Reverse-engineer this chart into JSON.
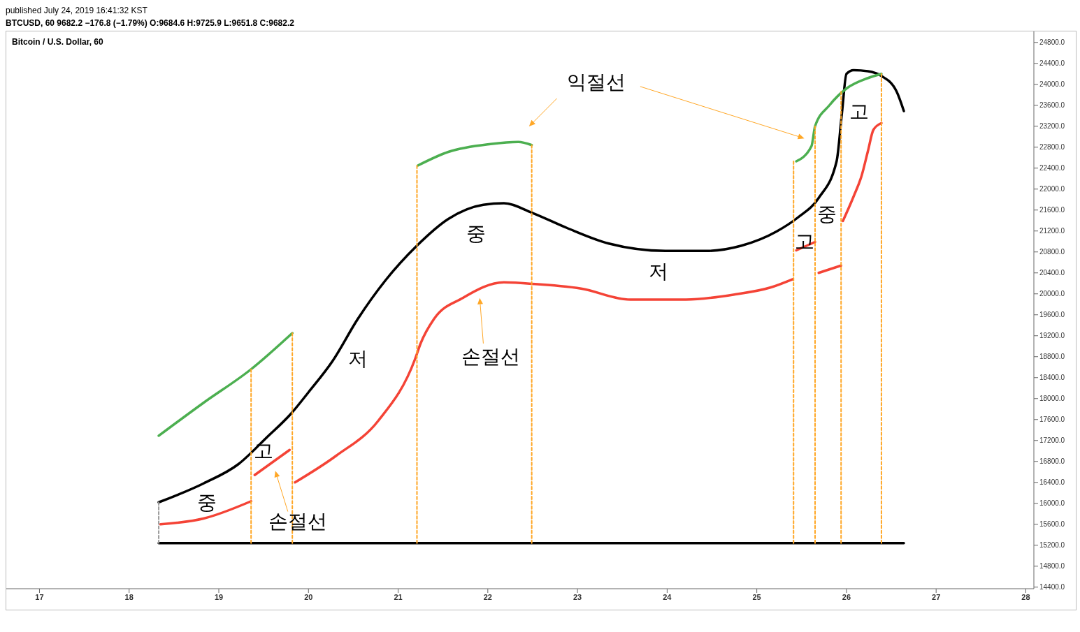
{
  "chart_data": {
    "type": "line",
    "title": "Bitcoin / U.S. Dollar, 60",
    "subtitle": "BTCUSD, 60  9682.2 −176.8 (−1.79%) O:9684.6 H:9725.9 L:9651.8 C:9682.2",
    "annotations": [
      "published July 24, 2019 16:41:32 KST",
      "익절선",
      "손절선",
      "손절선",
      "중",
      "고",
      "저",
      "중",
      "저",
      "고",
      "중",
      "고"
    ],
    "xlim": [
      16.63,
      28.09
    ],
    "xticks": [
      17,
      18,
      19,
      20,
      21,
      22,
      23,
      24,
      25,
      26,
      27,
      28
    ],
    "ylim": [
      14370,
      25010
    ],
    "yticks": [
      {
        "value": 14400,
        "label": "14400.0"
      },
      {
        "value": 14800,
        "label": "14800.0"
      },
      {
        "value": 15200,
        "label": "15200.0"
      },
      {
        "value": 15600,
        "label": "15600.0"
      },
      {
        "value": 16000,
        "label": "16000.0"
      },
      {
        "value": 16400,
        "label": "16400.0"
      },
      {
        "value": 16800,
        "label": "16800.0"
      },
      {
        "value": 17200,
        "label": "17200.0"
      },
      {
        "value": 17600,
        "label": "17600.0"
      },
      {
        "value": 18000,
        "label": "18000.0"
      },
      {
        "value": 18400,
        "label": "18400.0"
      },
      {
        "value": 18800,
        "label": "18800.0"
      },
      {
        "value": 19200,
        "label": "19200.0"
      },
      {
        "value": 19600,
        "label": "19600.0"
      },
      {
        "value": 20000,
        "label": "20000.0"
      },
      {
        "value": 20400,
        "label": "20400.0"
      },
      {
        "value": 20800,
        "label": "20800.0"
      },
      {
        "value": 21200,
        "label": "21200.0"
      },
      {
        "value": 21600,
        "label": "21600.0"
      },
      {
        "value": 22000,
        "label": "22000.0"
      },
      {
        "value": 22400,
        "label": "22400.0"
      },
      {
        "value": 22800,
        "label": "22800.0"
      },
      {
        "value": 23200,
        "label": "23200.0"
      },
      {
        "value": 23600,
        "label": "23600.0"
      },
      {
        "value": 24000,
        "label": "24000.0"
      },
      {
        "value": 24400,
        "label": "24400.0"
      },
      {
        "value": 24800,
        "label": "24800.0"
      }
    ],
    "marker": "none",
    "line_style": "solid",
    "series": [
      {
        "color": "#000000",
        "x": [
          18.33,
          26.64
        ],
        "values": [
          15240,
          15240
        ]
      },
      {
        "color": "#999999",
        "line_style": "dashed",
        "x": [
          18.33,
          18.33
        ],
        "values": [
          16020,
          15240
        ]
      },
      {
        "color": "#ffa726",
        "line_style": "dashed",
        "x": [
          19.36,
          19.36
        ],
        "values": [
          18560,
          15240
        ]
      },
      {
        "color": "#ffa726",
        "line_style": "dashed",
        "x": [
          19.82,
          19.82
        ],
        "values": [
          19250,
          15240
        ]
      },
      {
        "color": "#ffa726",
        "line_style": "dashed",
        "x": [
          21.21,
          21.21
        ],
        "values": [
          22450,
          15240
        ]
      },
      {
        "color": "#ffa726",
        "line_style": "dashed",
        "x": [
          22.49,
          22.49
        ],
        "values": [
          22840,
          15240
        ]
      },
      {
        "color": "#ffa726",
        "line_style": "dashed",
        "x": [
          25.41,
          25.41
        ],
        "values": [
          22530,
          15240
        ]
      },
      {
        "color": "#ffa726",
        "line_style": "dashed",
        "x": [
          25.65,
          25.65
        ],
        "values": [
          23200,
          15240
        ]
      },
      {
        "color": "#ffa726",
        "line_style": "dashed",
        "x": [
          25.94,
          25.94
        ],
        "values": [
          23860,
          15240
        ]
      },
      {
        "color": "#ffa726",
        "line_style": "dashed",
        "x": [
          26.39,
          26.39
        ],
        "values": [
          24200,
          15240
        ]
      },
      {
        "color": "#000000",
        "x": [
          18.33,
          18.83,
          19.22,
          19.53,
          19.81,
          20.0,
          20.27,
          20.55,
          20.86,
          21.21,
          21.56,
          21.95,
          22.18,
          22.49,
          22.88,
          23.35,
          23.98,
          24.44,
          24.83,
          25.22,
          25.46,
          25.69,
          25.89,
          25.95,
          26.0,
          26.08,
          26.24,
          26.39,
          26.56,
          26.64
        ],
        "values": [
          16020,
          16380,
          16750,
          17250,
          17720,
          18120,
          18720,
          19520,
          20260,
          20920,
          21430,
          21700,
          21730,
          21550,
          21260,
          20960,
          20820,
          20820,
          20920,
          21190,
          21460,
          21830,
          22530,
          23460,
          24200,
          24270,
          24250,
          24160,
          23860,
          23490
        ]
      },
      {
        "color": "#4caf50",
        "x": [
          18.33,
          18.83,
          19.36,
          19.82
        ],
        "values": [
          17290,
          17920,
          18560,
          19250
        ]
      },
      {
        "color": "#4caf50",
        "x": [
          21.22,
          21.56,
          22.03,
          22.34,
          22.49
        ],
        "values": [
          22450,
          22710,
          22860,
          22900,
          22840
        ]
      },
      {
        "color": "#4caf50",
        "x": [
          25.44,
          25.61,
          25.65,
          25.81,
          26.0,
          26.24,
          26.39
        ],
        "values": [
          22530,
          22820,
          23200,
          23600,
          23920,
          24120,
          24200
        ]
      },
      {
        "color": "#f44336",
        "x": [
          18.35,
          18.83,
          19.36
        ],
        "values": [
          15600,
          15710,
          16040
        ]
      },
      {
        "color": "#f44336",
        "x": [
          19.4,
          19.79
        ],
        "values": [
          16540,
          17020
        ]
      },
      {
        "color": "#f44336",
        "x": [
          19.85,
          20.31,
          20.78,
          21.19,
          21.25,
          21.4,
          21.72,
          22.18,
          22.49
        ],
        "values": [
          16400,
          16910,
          17580,
          18760,
          19050,
          19520,
          19920,
          20220,
          20190
        ]
      },
      {
        "color": "#f44336",
        "x": [
          22.49,
          23.04,
          23.59,
          24.21,
          24.76,
          25.15,
          25.4
        ],
        "values": [
          20190,
          20100,
          19890,
          19890,
          19990,
          20120,
          20280
        ]
      },
      {
        "color": "#f44336",
        "x": [
          25.44,
          25.65
        ],
        "values": [
          20830,
          20990
        ]
      },
      {
        "color": "#f44336",
        "x": [
          25.69,
          25.94
        ],
        "values": [
          20400,
          20540
        ]
      },
      {
        "color": "#f44336",
        "x": [
          25.96,
          26.08,
          26.17,
          26.24,
          26.3,
          26.39
        ],
        "values": [
          21390,
          21860,
          22260,
          22730,
          23130,
          23260
        ]
      }
    ]
  }
}
